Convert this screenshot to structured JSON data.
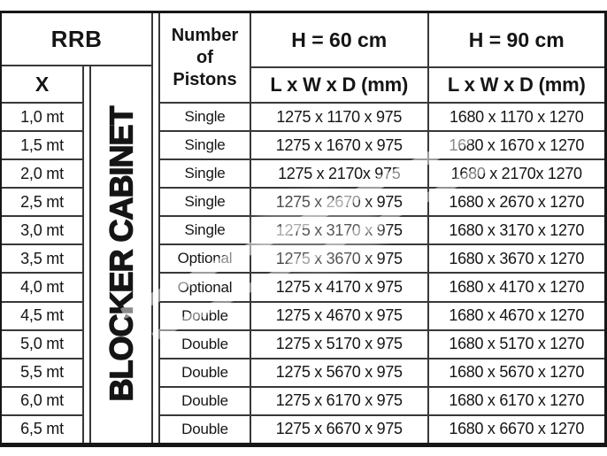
{
  "table": {
    "header": {
      "rrb": "RRB",
      "x": "X",
      "pistons": "Number\nof\nPistons",
      "h60": "H = 60 cm",
      "h90": "H = 90 cm",
      "dims60": "L x W x D (mm)",
      "dims90": "L x W x D (mm)"
    },
    "cabinet_label": "BLOCKER CABINET",
    "rows": [
      {
        "x": "1,0 mt",
        "pistons": "Single",
        "h60": "1275 x 1170 x 975",
        "h90": "1680 x 1170 x 1270"
      },
      {
        "x": "1,5 mt",
        "pistons": "Single",
        "h60": "1275 x 1670 x 975",
        "h90": "1680 x 1670 x 1270"
      },
      {
        "x": "2,0 mt",
        "pistons": "Single",
        "h60": "1275 x 2170x 975",
        "h90": "1680 x 2170x 1270"
      },
      {
        "x": "2,5 mt",
        "pistons": "Single",
        "h60": "1275 x 2670 x 975",
        "h90": "1680 x 2670 x 1270"
      },
      {
        "x": "3,0 mt",
        "pistons": "Single",
        "h60": "1275 x 3170 x 975",
        "h90": "1680 x 3170 x 1270"
      },
      {
        "x": "3,5 mt",
        "pistons": "Optional",
        "h60": "1275 x 3670 x 975",
        "h90": "1680 x 3670 x 1270"
      },
      {
        "x": "4,0 mt",
        "pistons": "Optional",
        "h60": "1275 x 4170 x 975",
        "h90": "1680 x 4170 x 1270"
      },
      {
        "x": "4,5 mt",
        "pistons": "Double",
        "h60": "1275 x 4670 x 975",
        "h90": "1680 x 4670 x 1270"
      },
      {
        "x": "5,0 mt",
        "pistons": "Double",
        "h60": "1275 x 5170 x 975",
        "h90": "1680 x 5170 x 1270"
      },
      {
        "x": "5,5 mt",
        "pistons": "Double",
        "h60": "1275 x 5670 x 975",
        "h90": "1680 x 5670 x 1270"
      },
      {
        "x": "6,0 mt",
        "pistons": "Double",
        "h60": "1275 x 6170 x 975",
        "h90": "1680 x 6170 x 1270"
      },
      {
        "x": "6,5 mt",
        "pistons": "Double",
        "h60": "1275 x 6670 x 975",
        "h90": "1680 x 6670 x 1270"
      }
    ],
    "colors": {
      "border_inner": "#383838",
      "border_outer": "#161616",
      "text": "#151515",
      "background": "#ffffff"
    }
  }
}
